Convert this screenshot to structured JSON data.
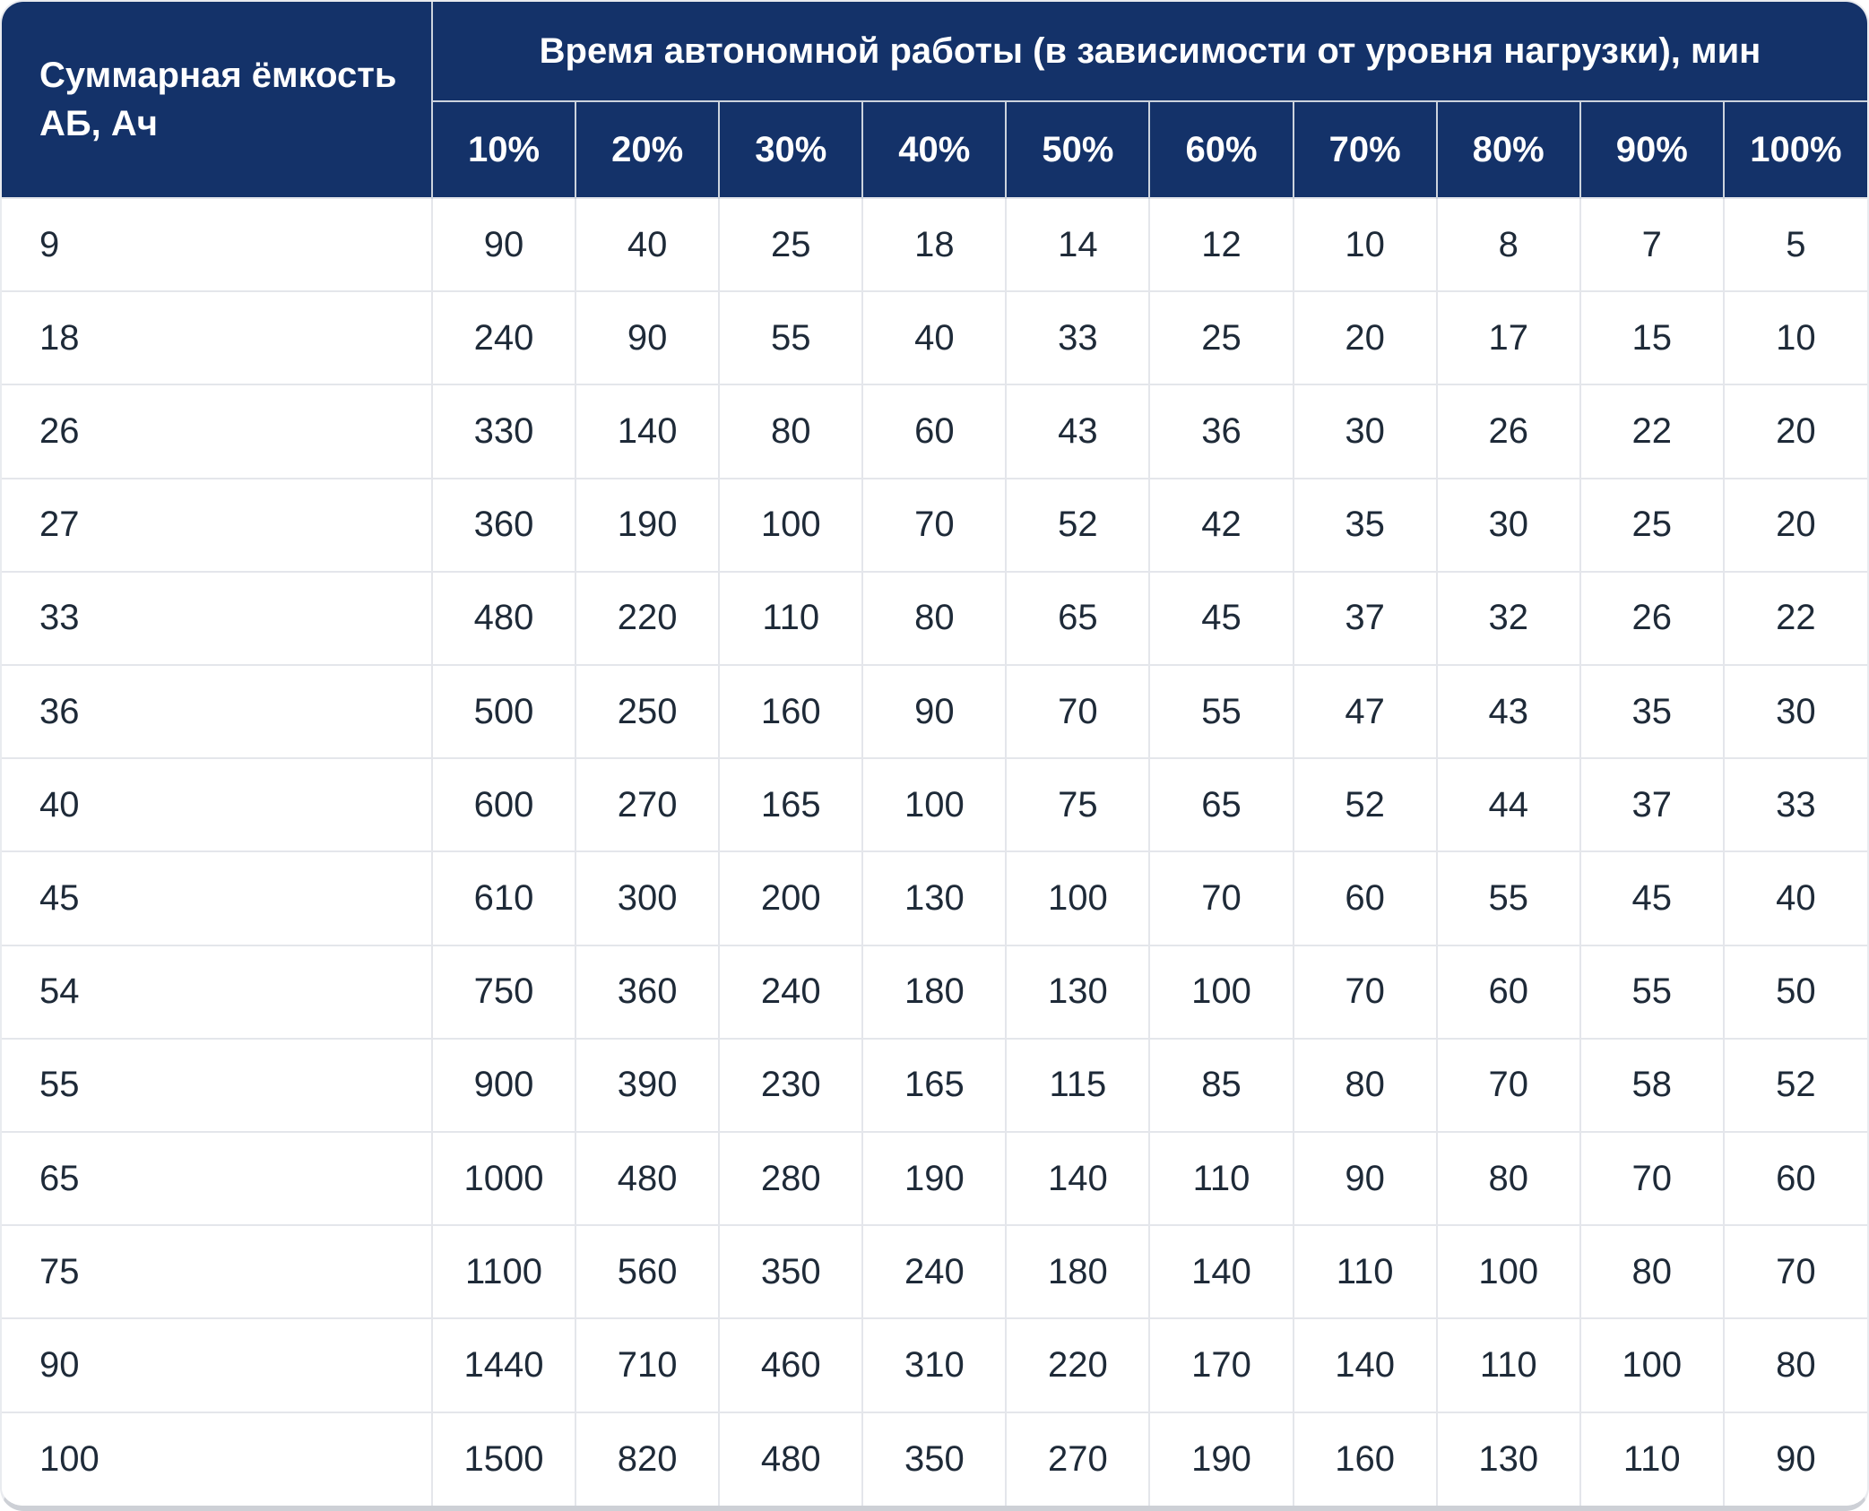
{
  "colors": {
    "header_background": "#143269",
    "header_text": "#ffffff",
    "body_text": "#1e2a38",
    "header_divider": "#ccd3dd",
    "body_divider": "#e4e6eb",
    "bottom_edge": "#cdd0d6"
  },
  "table": {
    "capacity_header": "Суммарная ёмкость\nАБ, Ач",
    "runtime_header": "Время автономной работы (в зависимости от уровня нагрузки), мин",
    "percent_headers": [
      "10%",
      "20%",
      "30%",
      "40%",
      "50%",
      "60%",
      "70%",
      "80%",
      "90%",
      "100%"
    ],
    "rows": [
      {
        "capacity": "9",
        "values": [
          "90",
          "40",
          "25",
          "18",
          "14",
          "12",
          "10",
          "8",
          "7",
          "5"
        ]
      },
      {
        "capacity": "18",
        "values": [
          "240",
          "90",
          "55",
          "40",
          "33",
          "25",
          "20",
          "17",
          "15",
          "10"
        ]
      },
      {
        "capacity": "26",
        "values": [
          "330",
          "140",
          "80",
          "60",
          "43",
          "36",
          "30",
          "26",
          "22",
          "20"
        ]
      },
      {
        "capacity": "27",
        "values": [
          "360",
          "190",
          "100",
          "70",
          "52",
          "42",
          "35",
          "30",
          "25",
          "20"
        ]
      },
      {
        "capacity": "33",
        "values": [
          "480",
          "220",
          "110",
          "80",
          "65",
          "45",
          "37",
          "32",
          "26",
          "22"
        ]
      },
      {
        "capacity": "36",
        "values": [
          "500",
          "250",
          "160",
          "90",
          "70",
          "55",
          "47",
          "43",
          "35",
          "30"
        ]
      },
      {
        "capacity": "40",
        "values": [
          "600",
          "270",
          "165",
          "100",
          "75",
          "65",
          "52",
          "44",
          "37",
          "33"
        ]
      },
      {
        "capacity": "45",
        "values": [
          "610",
          "300",
          "200",
          "130",
          "100",
          "70",
          "60",
          "55",
          "45",
          "40"
        ]
      },
      {
        "capacity": "54",
        "values": [
          "750",
          "360",
          "240",
          "180",
          "130",
          "100",
          "70",
          "60",
          "55",
          "50"
        ]
      },
      {
        "capacity": "55",
        "values": [
          "900",
          "390",
          "230",
          "165",
          "115",
          "85",
          "80",
          "70",
          "58",
          "52"
        ]
      },
      {
        "capacity": "65",
        "values": [
          "1000",
          "480",
          "280",
          "190",
          "140",
          "110",
          "90",
          "80",
          "70",
          "60"
        ]
      },
      {
        "capacity": "75",
        "values": [
          "1100",
          "560",
          "350",
          "240",
          "180",
          "140",
          "110",
          "100",
          "80",
          "70"
        ]
      },
      {
        "capacity": "90",
        "values": [
          "1440",
          "710",
          "460",
          "310",
          "220",
          "170",
          "140",
          "110",
          "100",
          "80"
        ]
      },
      {
        "capacity": "100",
        "values": [
          "1500",
          "820",
          "480",
          "350",
          "270",
          "190",
          "160",
          "130",
          "110",
          "90"
        ]
      }
    ]
  },
  "chart_data": {
    "type": "table",
    "title": "Время автономной работы (в зависимости от уровня нагрузки), мин",
    "row_label": "Суммарная ёмкость АБ, Ач",
    "columns": [
      "10%",
      "20%",
      "30%",
      "40%",
      "50%",
      "60%",
      "70%",
      "80%",
      "90%",
      "100%"
    ],
    "rows": [
      {
        "capacity": 9,
        "runtime_min": [
          90,
          40,
          25,
          18,
          14,
          12,
          10,
          8,
          7,
          5
        ]
      },
      {
        "capacity": 18,
        "runtime_min": [
          240,
          90,
          55,
          40,
          33,
          25,
          20,
          17,
          15,
          10
        ]
      },
      {
        "capacity": 26,
        "runtime_min": [
          330,
          140,
          80,
          60,
          43,
          36,
          30,
          26,
          22,
          20
        ]
      },
      {
        "capacity": 27,
        "runtime_min": [
          360,
          190,
          100,
          70,
          52,
          42,
          35,
          30,
          25,
          20
        ]
      },
      {
        "capacity": 33,
        "runtime_min": [
          480,
          220,
          110,
          80,
          65,
          45,
          37,
          32,
          26,
          22
        ]
      },
      {
        "capacity": 36,
        "runtime_min": [
          500,
          250,
          160,
          90,
          70,
          55,
          47,
          43,
          35,
          30
        ]
      },
      {
        "capacity": 40,
        "runtime_min": [
          600,
          270,
          165,
          100,
          75,
          65,
          52,
          44,
          37,
          33
        ]
      },
      {
        "capacity": 45,
        "runtime_min": [
          610,
          300,
          200,
          130,
          100,
          70,
          60,
          55,
          45,
          40
        ]
      },
      {
        "capacity": 54,
        "runtime_min": [
          750,
          360,
          240,
          180,
          130,
          100,
          70,
          60,
          55,
          50
        ]
      },
      {
        "capacity": 55,
        "runtime_min": [
          900,
          390,
          230,
          165,
          115,
          85,
          80,
          70,
          58,
          52
        ]
      },
      {
        "capacity": 65,
        "runtime_min": [
          1000,
          480,
          280,
          190,
          140,
          110,
          90,
          80,
          70,
          60
        ]
      },
      {
        "capacity": 75,
        "runtime_min": [
          1100,
          560,
          350,
          240,
          180,
          140,
          110,
          100,
          80,
          70
        ]
      },
      {
        "capacity": 90,
        "runtime_min": [
          1440,
          710,
          460,
          310,
          220,
          170,
          140,
          110,
          100,
          80
        ]
      },
      {
        "capacity": 100,
        "runtime_min": [
          1500,
          820,
          480,
          350,
          270,
          190,
          160,
          130,
          110,
          90
        ]
      }
    ]
  }
}
